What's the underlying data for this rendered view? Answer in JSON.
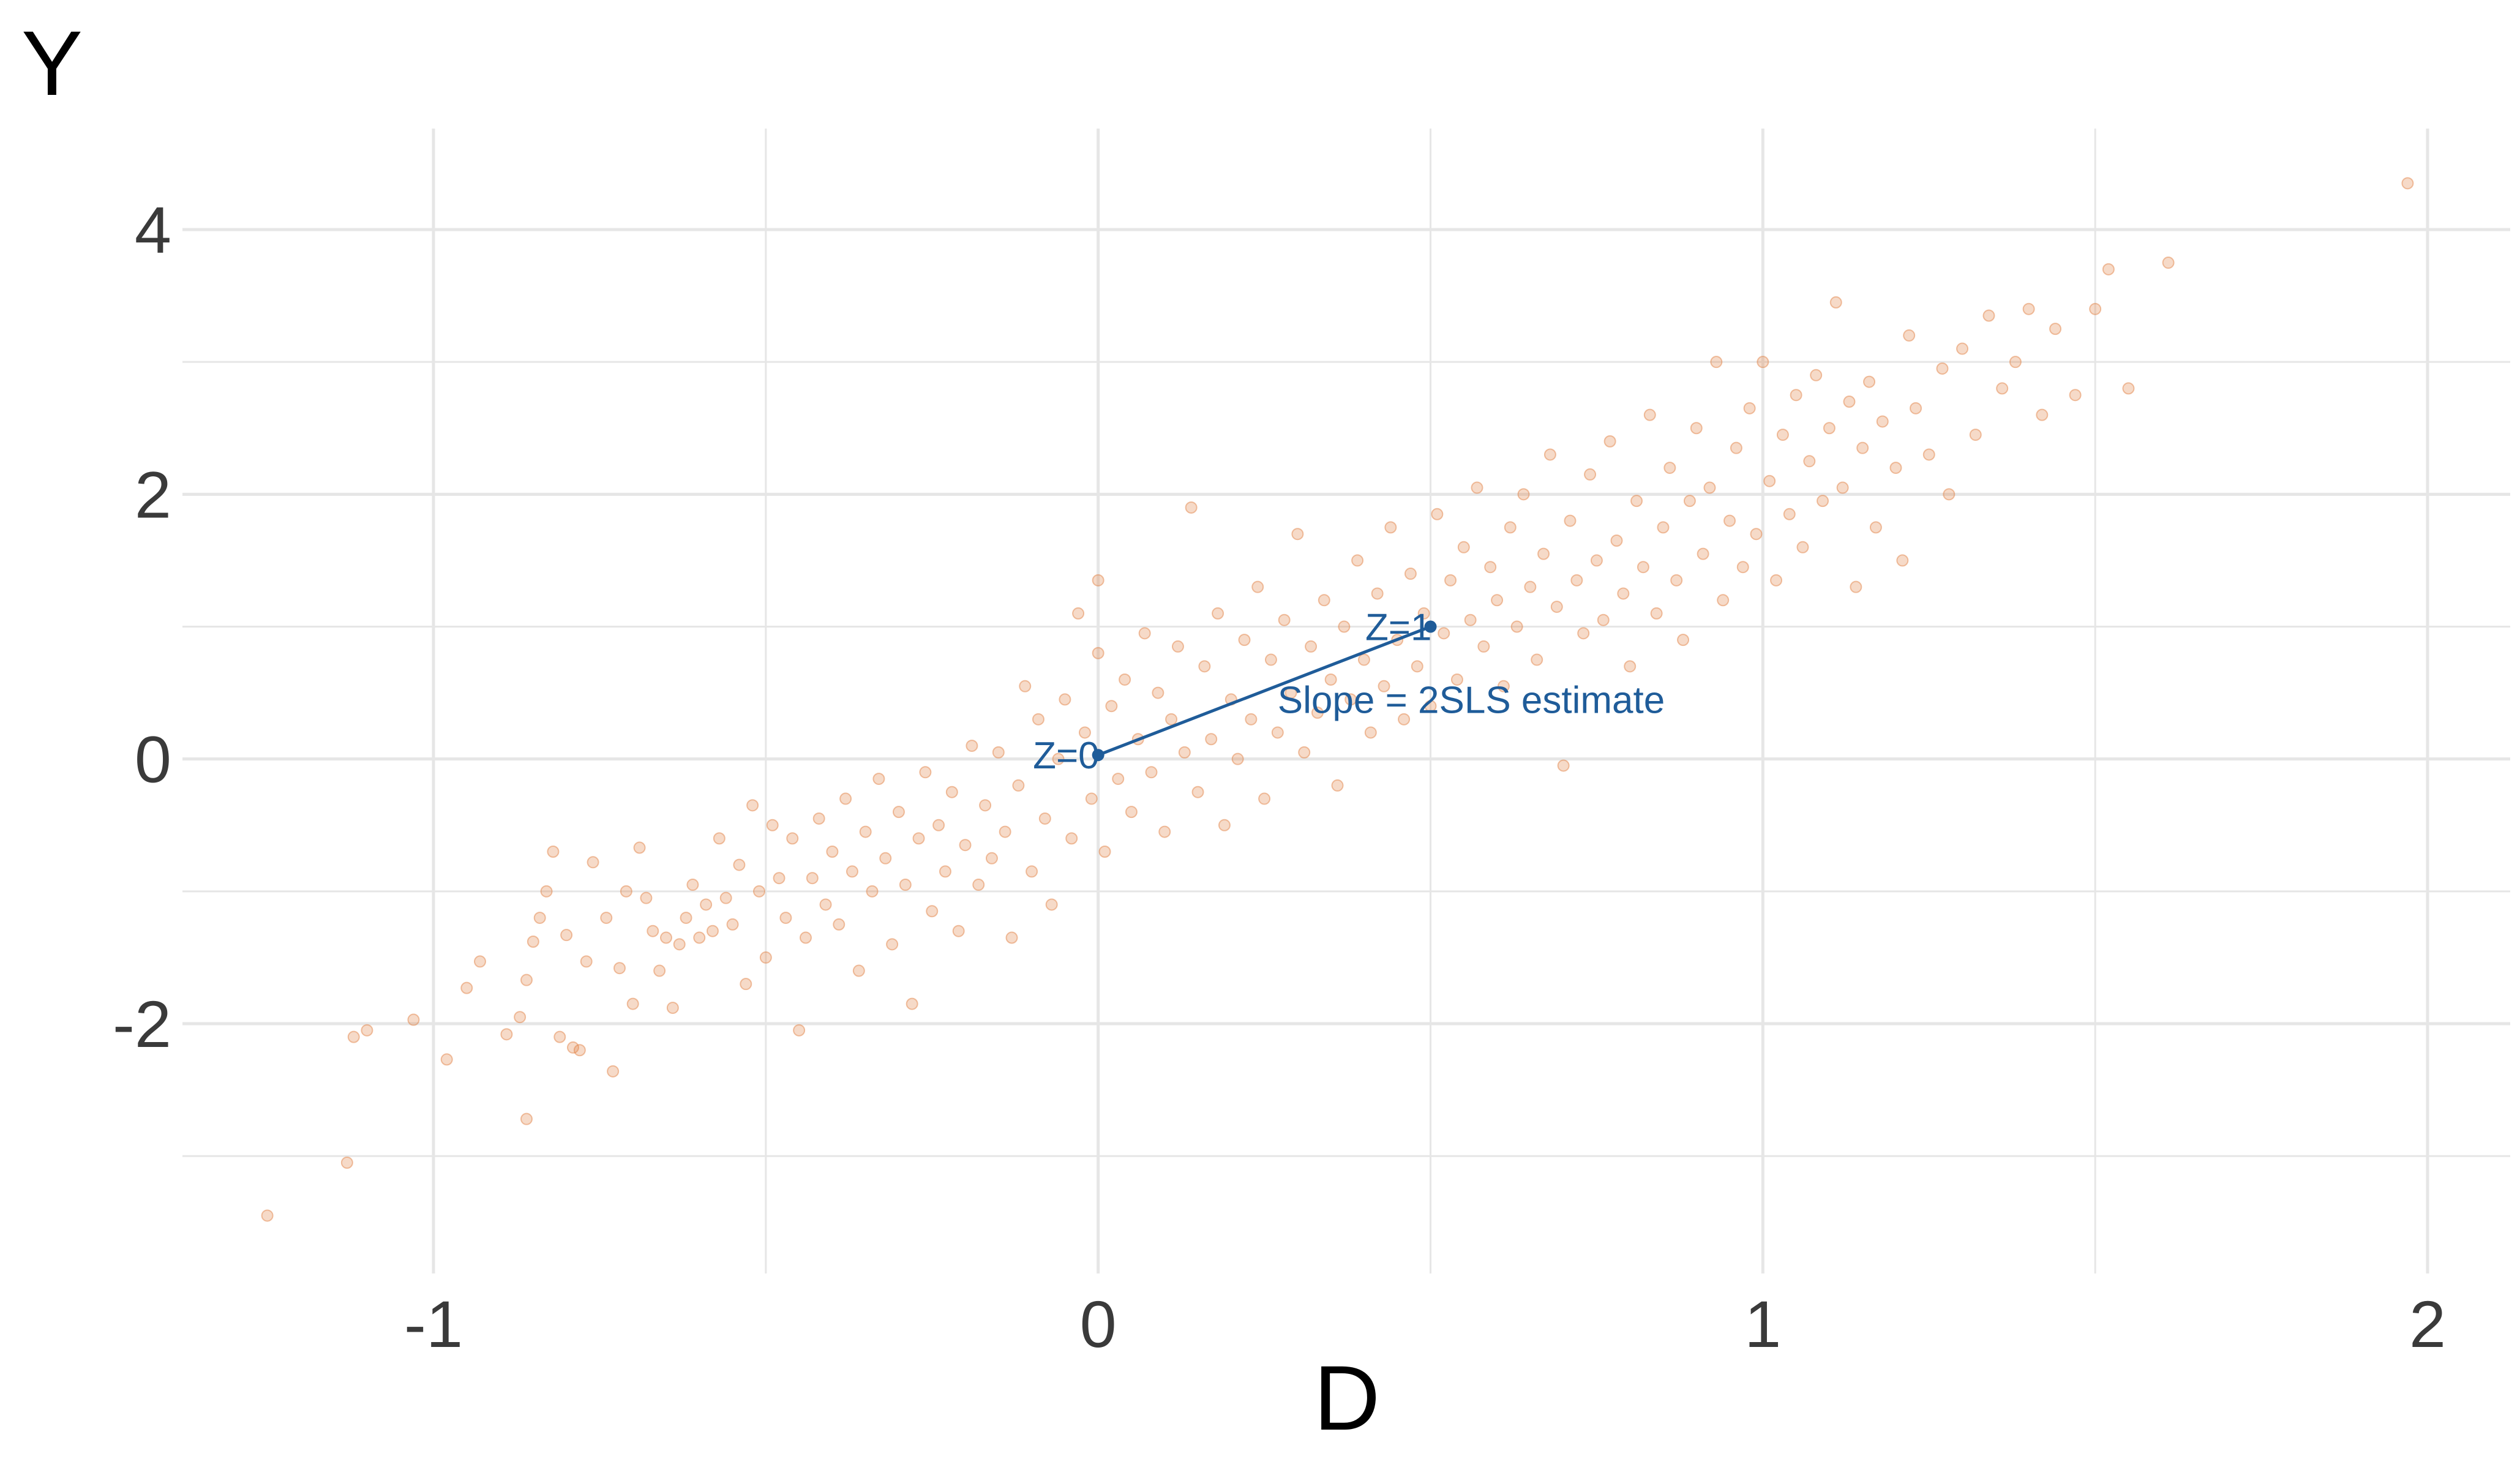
{
  "chart_data": {
    "type": "scatter",
    "title": "",
    "xlabel": "D",
    "ylabel": "Y",
    "xlim": [
      -1.3,
      2.1
    ],
    "ylim": [
      -3.9,
      4.7
    ],
    "x_ticks": [
      -1,
      0,
      1,
      2
    ],
    "x_tick_labels": [
      "-1",
      "0",
      "1",
      "2"
    ],
    "y_ticks": [
      -2,
      0,
      2,
      4
    ],
    "y_tick_labels": [
      "-2",
      "0",
      "2",
      "4"
    ],
    "grid": true,
    "legend": "none",
    "colors": {
      "points": "#E07B39",
      "annotation": "#1F5C99",
      "grid": "#e6e6e6"
    },
    "series": [
      {
        "values_note": "",
        "points": [
          [
            -1.25,
            -3.45
          ],
          [
            -1.13,
            -3.05
          ],
          [
            -1.12,
            -2.1
          ],
          [
            -1.1,
            -2.05
          ],
          [
            -1.03,
            -1.97
          ],
          [
            -0.98,
            -2.27
          ],
          [
            -0.95,
            -1.73
          ],
          [
            -0.93,
            -1.53
          ],
          [
            -0.89,
            -2.08
          ],
          [
            -0.87,
            -1.95
          ],
          [
            -0.86,
            -1.67
          ],
          [
            -0.86,
            -2.72
          ],
          [
            -0.85,
            -1.38
          ],
          [
            -0.84,
            -1.2
          ],
          [
            -0.83,
            -1.0
          ],
          [
            -0.82,
            -0.7
          ],
          [
            -0.81,
            -2.1
          ],
          [
            -0.8,
            -1.33
          ],
          [
            -0.79,
            -2.18
          ],
          [
            -0.78,
            -2.2
          ],
          [
            -0.77,
            -1.53
          ],
          [
            -0.76,
            -0.78
          ],
          [
            -0.74,
            -1.2
          ],
          [
            -0.73,
            -2.36
          ],
          [
            -0.72,
            -1.58
          ],
          [
            -0.71,
            -1.0
          ],
          [
            -0.7,
            -1.85
          ],
          [
            -0.69,
            -0.67
          ],
          [
            -0.68,
            -1.05
          ],
          [
            -0.67,
            -1.3
          ],
          [
            -0.66,
            -1.6
          ],
          [
            -0.65,
            -1.35
          ],
          [
            -0.64,
            -1.88
          ],
          [
            -0.63,
            -1.4
          ],
          [
            -0.62,
            -1.2
          ],
          [
            -0.61,
            -0.95
          ],
          [
            -0.6,
            -1.35
          ],
          [
            -0.59,
            -1.1
          ],
          [
            -0.58,
            -1.3
          ],
          [
            -0.57,
            -0.6
          ],
          [
            -0.56,
            -1.05
          ],
          [
            -0.55,
            -1.25
          ],
          [
            -0.54,
            -0.8
          ],
          [
            -0.53,
            -1.7
          ],
          [
            -0.52,
            -0.35
          ],
          [
            -0.51,
            -1.0
          ],
          [
            -0.5,
            -1.5
          ],
          [
            -0.49,
            -0.5
          ],
          [
            -0.48,
            -0.9
          ],
          [
            -0.47,
            -1.2
          ],
          [
            -0.46,
            -0.6
          ],
          [
            -0.45,
            -2.05
          ],
          [
            -0.44,
            -1.35
          ],
          [
            -0.43,
            -0.9
          ],
          [
            -0.42,
            -0.45
          ],
          [
            -0.41,
            -1.1
          ],
          [
            -0.4,
            -0.7
          ],
          [
            -0.39,
            -1.25
          ],
          [
            -0.38,
            -0.3
          ],
          [
            -0.37,
            -0.85
          ],
          [
            -0.36,
            -1.6
          ],
          [
            -0.35,
            -0.55
          ],
          [
            -0.34,
            -1.0
          ],
          [
            -0.33,
            -0.15
          ],
          [
            -0.32,
            -0.75
          ],
          [
            -0.31,
            -1.4
          ],
          [
            -0.3,
            -0.4
          ],
          [
            -0.29,
            -0.95
          ],
          [
            -0.28,
            -1.85
          ],
          [
            -0.27,
            -0.6
          ],
          [
            -0.26,
            -0.1
          ],
          [
            -0.25,
            -1.15
          ],
          [
            -0.24,
            -0.5
          ],
          [
            -0.23,
            -0.85
          ],
          [
            -0.22,
            -0.25
          ],
          [
            -0.21,
            -1.3
          ],
          [
            -0.2,
            -0.65
          ],
          [
            -0.19,
            0.1
          ],
          [
            -0.18,
            -0.95
          ],
          [
            -0.17,
            -0.35
          ],
          [
            -0.16,
            -0.75
          ],
          [
            -0.15,
            0.05
          ],
          [
            -0.14,
            -0.55
          ],
          [
            -0.13,
            -1.35
          ],
          [
            -0.12,
            -0.2
          ],
          [
            -0.11,
            0.55
          ],
          [
            -0.1,
            -0.85
          ],
          [
            -0.09,
            0.3
          ],
          [
            -0.08,
            -0.45
          ],
          [
            -0.07,
            -1.1
          ],
          [
            -0.06,
            0.0
          ],
          [
            -0.05,
            0.45
          ],
          [
            -0.04,
            -0.6
          ],
          [
            -0.03,
            1.1
          ],
          [
            -0.02,
            0.2
          ],
          [
            -0.01,
            -0.3
          ],
          [
            0.0,
            0.8
          ],
          [
            0.0,
            1.35
          ],
          [
            0.01,
            -0.7
          ],
          [
            0.02,
            0.4
          ],
          [
            0.03,
            -0.15
          ],
          [
            0.04,
            0.6
          ],
          [
            0.05,
            -0.4
          ],
          [
            0.06,
            0.15
          ],
          [
            0.07,
            0.95
          ],
          [
            0.08,
            -0.1
          ],
          [
            0.09,
            0.5
          ],
          [
            0.1,
            -0.55
          ],
          [
            0.11,
            0.3
          ],
          [
            0.12,
            0.85
          ],
          [
            0.13,
            0.05
          ],
          [
            0.14,
            1.9
          ],
          [
            0.15,
            -0.25
          ],
          [
            0.16,
            0.7
          ],
          [
            0.17,
            0.15
          ],
          [
            0.18,
            1.1
          ],
          [
            0.19,
            -0.5
          ],
          [
            0.2,
            0.45
          ],
          [
            0.21,
            0.0
          ],
          [
            0.22,
            0.9
          ],
          [
            0.23,
            0.3
          ],
          [
            0.24,
            1.3
          ],
          [
            0.25,
            -0.3
          ],
          [
            0.26,
            0.75
          ],
          [
            0.27,
            0.2
          ],
          [
            0.28,
            1.05
          ],
          [
            0.29,
            0.5
          ],
          [
            0.3,
            1.7
          ],
          [
            0.31,
            0.05
          ],
          [
            0.32,
            0.85
          ],
          [
            0.33,
            0.35
          ],
          [
            0.34,
            1.2
          ],
          [
            0.35,
            0.6
          ],
          [
            0.36,
            -0.2
          ],
          [
            0.37,
            1.0
          ],
          [
            0.38,
            0.45
          ],
          [
            0.39,
            1.5
          ],
          [
            0.4,
            0.75
          ],
          [
            0.41,
            0.2
          ],
          [
            0.42,
            1.25
          ],
          [
            0.43,
            0.55
          ],
          [
            0.44,
            1.75
          ],
          [
            0.45,
            0.9
          ],
          [
            0.46,
            0.3
          ],
          [
            0.47,
            1.4
          ],
          [
            0.48,
            0.7
          ],
          [
            0.49,
            1.1
          ],
          [
            0.5,
            0.4
          ],
          [
            0.51,
            1.85
          ],
          [
            0.52,
            0.95
          ],
          [
            0.53,
            1.35
          ],
          [
            0.54,
            0.6
          ],
          [
            0.55,
            1.6
          ],
          [
            0.56,
            1.05
          ],
          [
            0.57,
            2.05
          ],
          [
            0.58,
            0.85
          ],
          [
            0.59,
            1.45
          ],
          [
            0.6,
            1.2
          ],
          [
            0.61,
            0.55
          ],
          [
            0.62,
            1.75
          ],
          [
            0.63,
            1.0
          ],
          [
            0.64,
            2.0
          ],
          [
            0.65,
            1.3
          ],
          [
            0.66,
            0.75
          ],
          [
            0.67,
            1.55
          ],
          [
            0.68,
            2.3
          ],
          [
            0.69,
            1.15
          ],
          [
            0.7,
            -0.05
          ],
          [
            0.71,
            1.8
          ],
          [
            0.72,
            1.35
          ],
          [
            0.73,
            0.95
          ],
          [
            0.74,
            2.15
          ],
          [
            0.75,
            1.5
          ],
          [
            0.76,
            1.05
          ],
          [
            0.77,
            2.4
          ],
          [
            0.78,
            1.65
          ],
          [
            0.79,
            1.25
          ],
          [
            0.8,
            0.7
          ],
          [
            0.81,
            1.95
          ],
          [
            0.82,
            1.45
          ],
          [
            0.83,
            2.6
          ],
          [
            0.84,
            1.1
          ],
          [
            0.85,
            1.75
          ],
          [
            0.86,
            2.2
          ],
          [
            0.87,
            1.35
          ],
          [
            0.88,
            0.9
          ],
          [
            0.89,
            1.95
          ],
          [
            0.9,
            2.5
          ],
          [
            0.91,
            1.55
          ],
          [
            0.92,
            2.05
          ],
          [
            0.93,
            3.0
          ],
          [
            0.94,
            1.2
          ],
          [
            0.95,
            1.8
          ],
          [
            0.96,
            2.35
          ],
          [
            0.97,
            1.45
          ],
          [
            0.98,
            2.65
          ],
          [
            0.99,
            1.7
          ],
          [
            1.0,
            3.0
          ],
          [
            1.01,
            2.1
          ],
          [
            1.02,
            1.35
          ],
          [
            1.03,
            2.45
          ],
          [
            1.04,
            1.85
          ],
          [
            1.05,
            2.75
          ],
          [
            1.06,
            1.6
          ],
          [
            1.07,
            2.25
          ],
          [
            1.08,
            2.9
          ],
          [
            1.09,
            1.95
          ],
          [
            1.1,
            2.5
          ],
          [
            1.11,
            3.45
          ],
          [
            1.12,
            2.05
          ],
          [
            1.13,
            2.7
          ],
          [
            1.14,
            1.3
          ],
          [
            1.15,
            2.35
          ],
          [
            1.16,
            2.85
          ],
          [
            1.17,
            1.75
          ],
          [
            1.18,
            2.55
          ],
          [
            1.2,
            2.2
          ],
          [
            1.21,
            1.5
          ],
          [
            1.22,
            3.2
          ],
          [
            1.23,
            2.65
          ],
          [
            1.25,
            2.3
          ],
          [
            1.27,
            2.95
          ],
          [
            1.28,
            2.0
          ],
          [
            1.3,
            3.1
          ],
          [
            1.32,
            2.45
          ],
          [
            1.34,
            3.35
          ],
          [
            1.36,
            2.8
          ],
          [
            1.38,
            3.0
          ],
          [
            1.4,
            3.4
          ],
          [
            1.42,
            2.6
          ],
          [
            1.44,
            3.25
          ],
          [
            1.47,
            2.75
          ],
          [
            1.5,
            3.4
          ],
          [
            1.52,
            3.7
          ],
          [
            1.55,
            2.8
          ],
          [
            1.61,
            3.75
          ],
          [
            1.97,
            4.35
          ]
        ]
      }
    ],
    "annotations": {
      "z0_label": "Z=0",
      "z1_label": "Z=1",
      "slope_label": "Slope = 2SLS estimate",
      "z0_point": [
        0.0,
        0.03
      ],
      "z1_point": [
        0.5,
        1.0
      ]
    }
  }
}
